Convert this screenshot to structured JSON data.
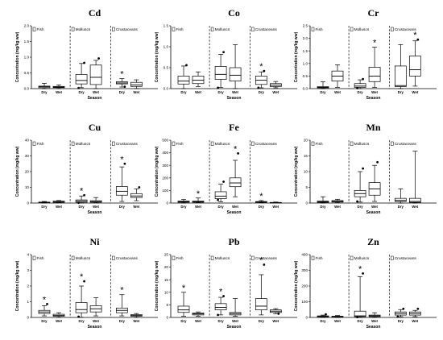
{
  "chart_data": [
    {
      "type": "box",
      "title": "Cd",
      "ylabel": "Concentration (mg/kg ww)",
      "xlabel": "Season",
      "ylim": [
        0,
        2.0
      ],
      "yticks": [
        "0.0",
        "0.5",
        "1.0",
        "1.5",
        "2.0"
      ],
      "groups": [
        "Fish",
        "Molluscs",
        "Crustaceans"
      ],
      "categories": [
        "Dry",
        "Wet"
      ],
      "boxes": [
        {
          "group": "Fish",
          "season": "Dry",
          "min": 0.0,
          "q1": 0.03,
          "median": 0.06,
          "q3": 0.08,
          "max": 0.17,
          "outliers": [],
          "star": false
        },
        {
          "group": "Fish",
          "season": "Wet",
          "min": 0.0,
          "q1": 0.03,
          "median": 0.05,
          "q3": 0.07,
          "max": 0.12,
          "outliers": [],
          "star": false
        },
        {
          "group": "Molluscs",
          "season": "Dry",
          "min": 0.03,
          "q1": 0.15,
          "median": 0.26,
          "q3": 0.45,
          "max": 0.8,
          "outliers": [
            0.82,
            0.02
          ],
          "star": false
        },
        {
          "group": "Molluscs",
          "season": "Wet",
          "min": 0.0,
          "q1": 0.13,
          "median": 0.36,
          "q3": 0.75,
          "max": 0.9,
          "outliers": [
            0.96
          ],
          "star": false
        },
        {
          "group": "Crustaceans",
          "season": "Dry",
          "min": 0.05,
          "q1": 0.15,
          "median": 0.18,
          "q3": 0.22,
          "max": 0.32,
          "outliers": [
            0.06
          ],
          "star": true
        },
        {
          "group": "Crustaceans",
          "season": "Wet",
          "min": 0.0,
          "q1": 0.07,
          "median": 0.12,
          "q3": 0.2,
          "max": 0.28,
          "outliers": [],
          "star": false
        }
      ]
    },
    {
      "type": "box",
      "title": "Co",
      "ylabel": "Concentration (mg/kg ww)",
      "xlabel": "Season",
      "ylim": [
        0,
        1.5
      ],
      "yticks": [
        "0.0",
        "0.5",
        "1.0",
        "1.5"
      ],
      "groups": [
        "Fish",
        "Molluscs",
        "Crustaceans"
      ],
      "categories": [
        "Dry",
        "Wet"
      ],
      "boxes": [
        {
          "group": "Fish",
          "season": "Dry",
          "min": 0.0,
          "q1": 0.11,
          "median": 0.18,
          "q3": 0.3,
          "max": 0.54,
          "outliers": [
            0.56
          ],
          "star": false
        },
        {
          "group": "Fish",
          "season": "Wet",
          "min": 0.05,
          "q1": 0.12,
          "median": 0.2,
          "q3": 0.3,
          "max": 0.4,
          "outliers": [],
          "star": false
        },
        {
          "group": "Molluscs",
          "season": "Dry",
          "min": 0.03,
          "q1": 0.22,
          "median": 0.34,
          "q3": 0.53,
          "max": 0.82,
          "outliers": [
            0.87,
            0.02
          ],
          "star": false
        },
        {
          "group": "Molluscs",
          "season": "Wet",
          "min": 0.0,
          "q1": 0.18,
          "median": 0.32,
          "q3": 0.5,
          "max": 1.05,
          "outliers": [],
          "star": false
        },
        {
          "group": "Crustaceans",
          "season": "Dry",
          "min": 0.02,
          "q1": 0.1,
          "median": 0.2,
          "q3": 0.3,
          "max": 0.4,
          "outliers": [
            0.42,
            0.02
          ],
          "star": true
        },
        {
          "group": "Crustaceans",
          "season": "Wet",
          "min": 0.02,
          "q1": 0.05,
          "median": 0.08,
          "q3": 0.12,
          "max": 0.17,
          "outliers": [],
          "star": false
        }
      ]
    },
    {
      "type": "box",
      "title": "Cr",
      "ylabel": "Concentration (mg/kg ww)",
      "xlabel": "Season",
      "ylim": [
        0,
        2.5
      ],
      "yticks": [
        "0.0",
        "0.5",
        "1.0",
        "1.5",
        "2.0",
        "2.5"
      ],
      "groups": [
        "Fish",
        "Molluscs",
        "Crustaceans"
      ],
      "categories": [
        "Dry",
        "Wet"
      ],
      "boxes": [
        {
          "group": "Fish",
          "season": "Dry",
          "min": 0.0,
          "q1": 0.03,
          "median": 0.05,
          "q3": 0.08,
          "max": 0.27,
          "outliers": [],
          "star": false
        },
        {
          "group": "Fish",
          "season": "Wet",
          "min": 0.05,
          "q1": 0.3,
          "median": 0.5,
          "q3": 0.7,
          "max": 0.95,
          "outliers": [],
          "star": false
        },
        {
          "group": "Molluscs",
          "season": "Dry",
          "min": 0.0,
          "q1": 0.05,
          "median": 0.1,
          "q3": 0.2,
          "max": 0.35,
          "outliers": [
            0.38,
            0.02
          ],
          "star": false
        },
        {
          "group": "Molluscs",
          "season": "Wet",
          "min": 0.05,
          "q1": 0.28,
          "median": 0.5,
          "q3": 0.85,
          "max": 1.65,
          "outliers": [],
          "star": true
        },
        {
          "group": "Crustaceans",
          "season": "Dry",
          "min": 0.0,
          "q1": 0.08,
          "median": 0.12,
          "q3": 0.9,
          "max": 1.75,
          "outliers": [],
          "star": false
        },
        {
          "group": "Crustaceans",
          "season": "Wet",
          "min": 0.1,
          "q1": 0.5,
          "median": 0.75,
          "q3": 1.3,
          "max": 1.9,
          "outliers": [
            1.95
          ],
          "star": true
        }
      ]
    },
    {
      "type": "box",
      "title": "Cu",
      "ylabel": "Concentration (mg/kg ww)",
      "xlabel": "Season",
      "ylim": [
        0,
        40
      ],
      "yticks": [
        "0",
        "10",
        "20",
        "30",
        "40"
      ],
      "groups": [
        "Fish",
        "Molluscs",
        "Crustaceans"
      ],
      "categories": [
        "Dry",
        "Wet"
      ],
      "boxes": [
        {
          "group": "Fish",
          "season": "Dry",
          "min": 0.0,
          "q1": 0.2,
          "median": 0.4,
          "q3": 0.6,
          "max": 1.0,
          "outliers": [],
          "star": false
        },
        {
          "group": "Fish",
          "season": "Wet",
          "min": 0.1,
          "q1": 0.4,
          "median": 0.7,
          "q3": 1.2,
          "max": 1.6,
          "outliers": [],
          "star": false
        },
        {
          "group": "Molluscs",
          "season": "Dry",
          "min": 0.0,
          "q1": 0.5,
          "median": 1.2,
          "q3": 2.0,
          "max": 4.5,
          "outliers": [
            5.0,
            0.1
          ],
          "star": true
        },
        {
          "group": "Molluscs",
          "season": "Wet",
          "min": 0.1,
          "q1": 0.5,
          "median": 0.9,
          "q3": 1.5,
          "max": 3.5,
          "outliers": [],
          "star": false
        },
        {
          "group": "Crustaceans",
          "season": "Dry",
          "min": 1.0,
          "q1": 5.0,
          "median": 7.5,
          "q3": 10.5,
          "max": 23.0,
          "outliers": [
            25.0
          ],
          "star": true
        },
        {
          "group": "Crustaceans",
          "season": "Wet",
          "min": 1.5,
          "q1": 3.5,
          "median": 4.5,
          "q3": 6.0,
          "max": 9.0,
          "outliers": [
            10.0
          ],
          "star": false
        }
      ]
    },
    {
      "type": "box",
      "title": "Fe",
      "ylabel": "Concentration (mg/kg ww)",
      "xlabel": "Season",
      "ylim": [
        0,
        500
      ],
      "yticks": [
        "0",
        "100",
        "200",
        "300",
        "400",
        "500"
      ],
      "groups": [
        "Fish",
        "Molluscs",
        "Crustaceans"
      ],
      "categories": [
        "Dry",
        "Wet"
      ],
      "boxes": [
        {
          "group": "Fish",
          "season": "Dry",
          "min": 0,
          "q1": 6,
          "median": 10,
          "q3": 16,
          "max": 28,
          "outliers": [],
          "star": false
        },
        {
          "group": "Fish",
          "season": "Wet",
          "min": 2,
          "q1": 6,
          "median": 10,
          "q3": 15,
          "max": 40,
          "outliers": [],
          "star": true
        },
        {
          "group": "Molluscs",
          "season": "Dry",
          "min": 10,
          "q1": 35,
          "median": 55,
          "q3": 90,
          "max": 150,
          "outliers": [
            170,
            25
          ],
          "star": false
        },
        {
          "group": "Molluscs",
          "season": "Wet",
          "min": 50,
          "q1": 130,
          "median": 160,
          "q3": 200,
          "max": 340,
          "outliers": [
            395
          ],
          "star": true
        },
        {
          "group": "Crustaceans",
          "season": "Dry",
          "min": 2,
          "q1": 5,
          "median": 8,
          "q3": 12,
          "max": 20,
          "outliers": [],
          "star": true
        },
        {
          "group": "Crustaceans",
          "season": "Wet",
          "min": 1,
          "q1": 2,
          "median": 3,
          "q3": 5,
          "max": 8,
          "outliers": [],
          "star": false
        }
      ]
    },
    {
      "type": "box",
      "title": "Mn",
      "ylabel": "Concentration (mg/kg ww)",
      "xlabel": "Season",
      "ylim": [
        0,
        20
      ],
      "yticks": [
        "0",
        "5",
        "10",
        "15",
        "20"
      ],
      "groups": [
        "Fish",
        "Molluscs",
        "Crustaceans"
      ],
      "categories": [
        "Dry",
        "Wet"
      ],
      "boxes": [
        {
          "group": "Fish",
          "season": "Dry",
          "min": 0.0,
          "q1": 0.2,
          "median": 0.4,
          "q3": 0.6,
          "max": 2.0,
          "outliers": [],
          "star": false
        },
        {
          "group": "Fish",
          "season": "Wet",
          "min": 0.1,
          "q1": 0.3,
          "median": 0.5,
          "q3": 0.8,
          "max": 1.2,
          "outliers": [],
          "star": false
        },
        {
          "group": "Molluscs",
          "season": "Dry",
          "min": 0.3,
          "q1": 2.0,
          "median": 3.0,
          "q3": 4.0,
          "max": 10.0,
          "outliers": [
            11.0,
            0.5
          ],
          "star": false
        },
        {
          "group": "Molluscs",
          "season": "Wet",
          "min": 0.5,
          "q1": 2.5,
          "median": 4.5,
          "q3": 6.5,
          "max": 12.0,
          "outliers": [
            13.0
          ],
          "star": false
        },
        {
          "group": "Crustaceans",
          "season": "Dry",
          "min": 0.0,
          "q1": 0.5,
          "median": 0.8,
          "q3": 1.5,
          "max": 4.5,
          "outliers": [],
          "star": false
        },
        {
          "group": "Crustaceans",
          "season": "Wet",
          "min": 0.0,
          "q1": 0.2,
          "median": 0.5,
          "q3": 1.5,
          "max": 16.5,
          "outliers": [],
          "star": false
        }
      ]
    },
    {
      "type": "box",
      "title": "Ni",
      "ylabel": "Concentration (mg/kg ww)",
      "xlabel": "Season",
      "ylim": [
        0,
        4
      ],
      "yticks": [
        "0",
        "1",
        "2",
        "3",
        "4"
      ],
      "groups": [
        "Fish",
        "Molluscs",
        "Crustaceans"
      ],
      "categories": [
        "Dry",
        "Wet"
      ],
      "boxes": [
        {
          "group": "Fish",
          "season": "Dry",
          "min": 0.1,
          "q1": 0.25,
          "median": 0.35,
          "q3": 0.45,
          "max": 0.75,
          "outliers": [
            0.85
          ],
          "star": true
        },
        {
          "group": "Fish",
          "season": "Wet",
          "min": 0.0,
          "q1": 0.08,
          "median": 0.12,
          "q3": 0.2,
          "max": 0.3,
          "outliers": [],
          "star": false
        },
        {
          "group": "Molluscs",
          "season": "Dry",
          "min": 0.0,
          "q1": 0.3,
          "median": 0.5,
          "q3": 0.95,
          "max": 2.0,
          "outliers": [
            2.3,
            0.05
          ],
          "star": true
        },
        {
          "group": "Molluscs",
          "season": "Wet",
          "min": 0.1,
          "q1": 0.35,
          "median": 0.55,
          "q3": 0.75,
          "max": 1.25,
          "outliers": [],
          "star": false
        },
        {
          "group": "Crustaceans",
          "season": "Dry",
          "min": 0.1,
          "q1": 0.3,
          "median": 0.45,
          "q3": 0.6,
          "max": 1.45,
          "outliers": [],
          "star": true
        },
        {
          "group": "Crustaceans",
          "season": "Wet",
          "min": 0.0,
          "q1": 0.08,
          "median": 0.12,
          "q3": 0.18,
          "max": 0.25,
          "outliers": [],
          "star": false
        }
      ]
    },
    {
      "type": "box",
      "title": "Pb",
      "ylabel": "Concentration (mg/kg ww)",
      "xlabel": "Season",
      "ylim": [
        0,
        25
      ],
      "yticks": [
        "0",
        "5",
        "10",
        "15",
        "20",
        "25"
      ],
      "groups": [
        "Fish",
        "Molluscs",
        "Crustaceans"
      ],
      "categories": [
        "Dry",
        "Wet"
      ],
      "boxes": [
        {
          "group": "Fish",
          "season": "Dry",
          "min": 0.5,
          "q1": 2.0,
          "median": 3.0,
          "q3": 4.5,
          "max": 10.0,
          "outliers": [],
          "star": true
        },
        {
          "group": "Fish",
          "season": "Wet",
          "min": 0.5,
          "q1": 1.0,
          "median": 1.4,
          "q3": 1.8,
          "max": 2.2,
          "outliers": [],
          "star": false
        },
        {
          "group": "Molluscs",
          "season": "Dry",
          "min": 1.0,
          "q1": 3.0,
          "median": 4.0,
          "q3": 5.5,
          "max": 8.0,
          "outliers": [
            8.5,
            1.0
          ],
          "star": true
        },
        {
          "group": "Molluscs",
          "season": "Wet",
          "min": 0.5,
          "q1": 1.0,
          "median": 1.5,
          "q3": 2.0,
          "max": 7.5,
          "outliers": [],
          "star": false
        },
        {
          "group": "Crustaceans",
          "season": "Dry",
          "min": 1.0,
          "q1": 3.0,
          "median": 4.5,
          "q3": 7.5,
          "max": 17.0,
          "outliers": [
            21.0
          ],
          "star": true
        },
        {
          "group": "Crustaceans",
          "season": "Wet",
          "min": 1.5,
          "q1": 2.0,
          "median": 2.5,
          "q3": 3.0,
          "max": 3.5,
          "outliers": [
            1.5
          ],
          "star": false
        }
      ]
    },
    {
      "type": "box",
      "title": "Zn",
      "ylabel": "Concentration (mg/kg ww)",
      "xlabel": "Season",
      "ylim": [
        0,
        400
      ],
      "yticks": [
        "0",
        "100",
        "200",
        "300",
        "400"
      ],
      "groups": [
        "Fish",
        "Molluscs",
        "Crustaceans"
      ],
      "categories": [
        "Dry",
        "Wet"
      ],
      "boxes": [
        {
          "group": "Fish",
          "season": "Dry",
          "min": 0,
          "q1": 3,
          "median": 6,
          "q3": 10,
          "max": 15,
          "outliers": [
            20
          ],
          "star": false
        },
        {
          "group": "Fish",
          "season": "Wet",
          "min": 0,
          "q1": 3,
          "median": 5,
          "q3": 8,
          "max": 12,
          "outliers": [],
          "star": false
        },
        {
          "group": "Molluscs",
          "season": "Dry",
          "min": 0,
          "q1": 5,
          "median": 10,
          "q3": 40,
          "max": 260,
          "outliers": [
            280,
            2
          ],
          "star": true
        },
        {
          "group": "Molluscs",
          "season": "Wet",
          "min": 0,
          "q1": 5,
          "median": 10,
          "q3": 15,
          "max": 30,
          "outliers": [],
          "star": false
        },
        {
          "group": "Crustaceans",
          "season": "Dry",
          "min": 5,
          "q1": 15,
          "median": 25,
          "q3": 35,
          "max": 50,
          "outliers": [
            55,
            5
          ],
          "star": false
        },
        {
          "group": "Crustaceans",
          "season": "Wet",
          "min": 5,
          "q1": 15,
          "median": 25,
          "q3": 35,
          "max": 45,
          "outliers": [
            55
          ],
          "star": false
        }
      ]
    }
  ]
}
